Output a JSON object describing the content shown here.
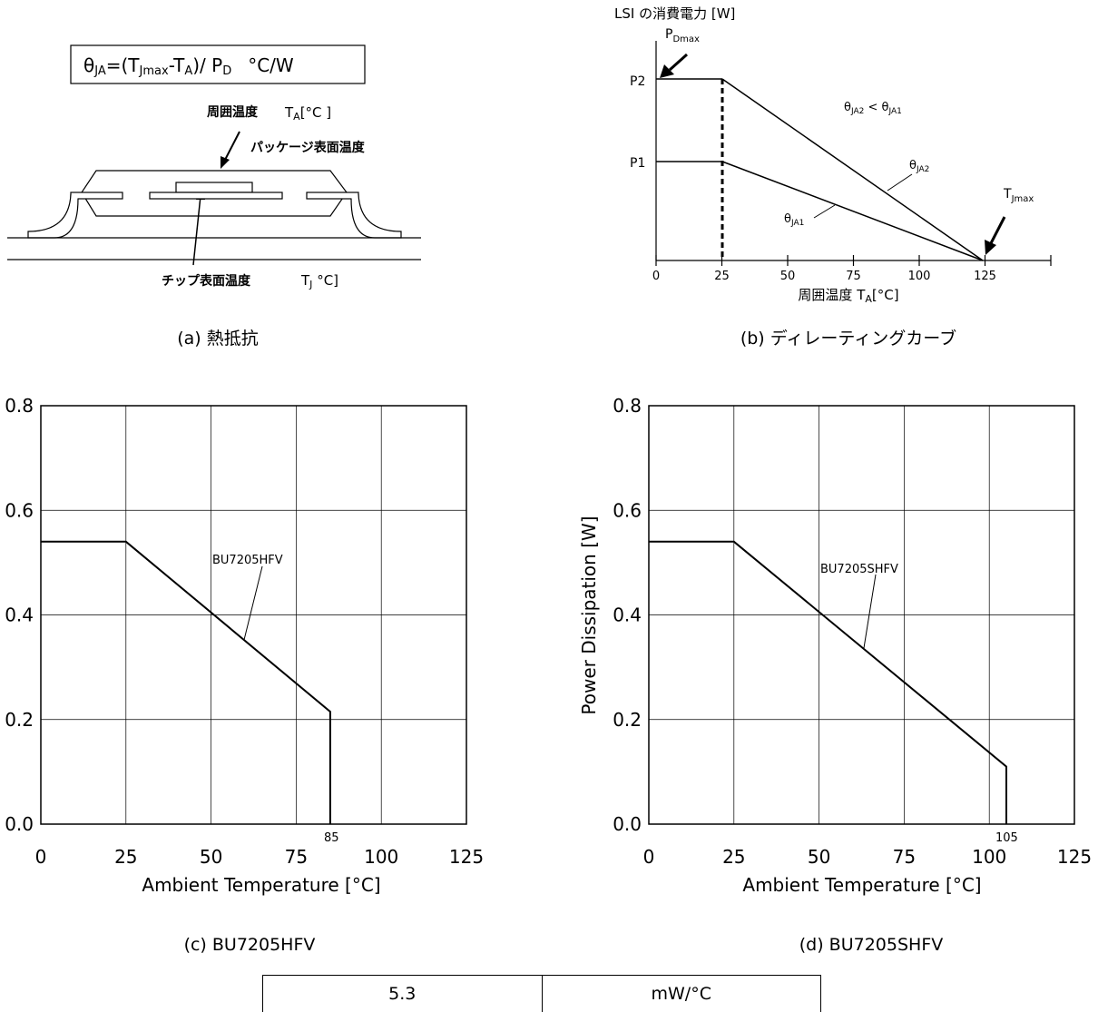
{
  "panel_a": {
    "formula": {
      "theta": "θ",
      "ja": "JA",
      "eq": "=(T",
      "jmax": "Jmax",
      "dash": "-T",
      "a": "A",
      "close": ")/ P",
      "d": "D",
      "unit": "°C/W"
    },
    "ambient_label": "周囲温度",
    "ambient_sym": "T",
    "ambient_sub": "A",
    "ambient_unit": "[°C ]",
    "package_label": "パッケージ表面温度",
    "chip_label": "チップ表面温度",
    "chip_sym": "T",
    "chip_sub": "J",
    "chip_unit": " °C]",
    "caption": "(a)  熱抵抗"
  },
  "panel_b": {
    "ylabel": "LSI の消費電力  [W]",
    "pdmax": "P",
    "pdmax_sub": "Dmax",
    "p2": "P2",
    "p1": "P1",
    "rel": {
      "t1": "θ",
      "s1": "JA2",
      "lt": " < θ",
      "s2": "JA1"
    },
    "ja2": {
      "t": "θ",
      "s": "JA2"
    },
    "ja1": {
      "t": "θ",
      "s": "JA1"
    },
    "tjmax": {
      "t": "T",
      "s": "Jmax"
    },
    "xticks": [
      "0",
      "25",
      "50",
      "75",
      "100",
      "125"
    ],
    "xlabel": "周囲温度 T",
    "xlabel_sub": "A",
    "xlabel_unit": "[°C]",
    "caption": "(b)  ディレーティングカーブ"
  },
  "chart_data": [
    {
      "type": "line",
      "title": "",
      "xlabel": "Ambient Temperature [°C]",
      "ylabel": "",
      "xlim": [
        0,
        125
      ],
      "ylim": [
        0.0,
        0.8
      ],
      "xticks": [
        "0",
        "25",
        "50",
        "75",
        "100",
        "125"
      ],
      "yticks": [
        "0.0",
        "0.2",
        "0.4",
        "0.6",
        "0.8"
      ],
      "grid": true,
      "series": [
        {
          "name": "BU7205HFV",
          "x": [
            0,
            25,
            85,
            85
          ],
          "y": [
            0.54,
            0.54,
            0.215,
            0.0
          ]
        }
      ],
      "annotations": [
        "85"
      ],
      "caption": "(c) BU7205HFV"
    },
    {
      "type": "line",
      "title": "",
      "xlabel": "Ambient Temperature [°C]",
      "ylabel": "Power Dissipation [W]",
      "xlim": [
        0,
        125
      ],
      "ylim": [
        0.0,
        0.8
      ],
      "xticks": [
        "0",
        "25",
        "50",
        "75",
        "100",
        "125"
      ],
      "yticks": [
        "0.0",
        "0.2",
        "0.4",
        "0.6",
        "0.8"
      ],
      "grid": true,
      "series": [
        {
          "name": "BU7205SHFV",
          "x": [
            0,
            25,
            105,
            105
          ],
          "y": [
            0.54,
            0.54,
            0.11,
            0.0
          ]
        }
      ],
      "annotations": [
        "105"
      ],
      "caption": "(d) BU7205SHFV"
    }
  ],
  "table": {
    "value": "5.3",
    "unit": "mW/°C"
  }
}
